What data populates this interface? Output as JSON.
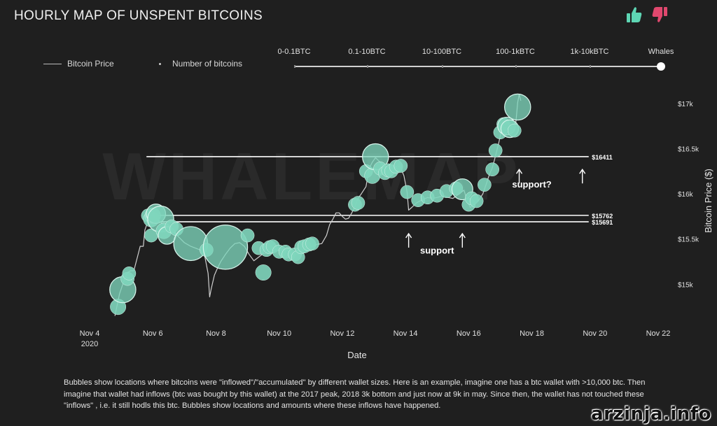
{
  "header": {
    "title": "HOURLY MAP OF UNSPENT BITCOINS",
    "like_icon": "thumbs-up-icon",
    "dislike_icon": "thumbs-down-icon",
    "like_color": "#5ed6b4",
    "dislike_color": "#e0486e"
  },
  "legend": {
    "price_label": "Bitcoin Price",
    "bubbles_label": "Number of bitcoins"
  },
  "wallet_filter": {
    "options": [
      "0-0.1BTC",
      "0.1-10BTC",
      "10-100BTC",
      "100-1kBTC",
      "1k-10kBTC",
      "Whales"
    ],
    "selected": "Whales"
  },
  "note": "Bubbles show locations where bitcoins were \"inflowed\"/\"accumulated\" by different wallet sizes. Here is an example, imagine one has a btc wallet with >10,000 btc. Then imagine that wallet had inflows (btc was bought by this wallet) at the 2017 peak, 2018 3k bottom and just now at 9k in may. Since then, the wallet has not touched these \"inflows\" , i.e. it still hodls this btc. Bubbles show locations and amounts where these inflows have happened.",
  "watermark": "arzinja.info",
  "chart_data": {
    "type": "line",
    "watermark": "WHALEMAP",
    "xlabel": "Date",
    "ylabel": "Bitcoin Price ($)",
    "x_ticks": [
      {
        "day": 4,
        "label": "Nov 4",
        "sub": "2020"
      },
      {
        "day": 6,
        "label": "Nov 6",
        "sub": ""
      },
      {
        "day": 8,
        "label": "Nov 8",
        "sub": ""
      },
      {
        "day": 10,
        "label": "Nov 10",
        "sub": ""
      },
      {
        "day": 12,
        "label": "Nov 12",
        "sub": ""
      },
      {
        "day": 14,
        "label": "Nov 14",
        "sub": ""
      },
      {
        "day": 16,
        "label": "Nov 16",
        "sub": ""
      },
      {
        "day": 18,
        "label": "Nov 18",
        "sub": ""
      },
      {
        "day": 20,
        "label": "Nov 20",
        "sub": ""
      },
      {
        "day": 22,
        "label": "Nov 22",
        "sub": ""
      }
    ],
    "y_ticks": [
      {
        "value": 15000,
        "label": "$15k"
      },
      {
        "value": 15500,
        "label": "$15.5k"
      },
      {
        "value": 16000,
        "label": "$16k"
      },
      {
        "value": 16500,
        "label": "$16.5k"
      },
      {
        "value": 17000,
        "label": "$17k"
      }
    ],
    "xlim": [
      4,
      22
    ],
    "ylim": [
      14500,
      17200
    ],
    "grid": false,
    "colors": {
      "price_line": "#cfcfcf",
      "bubble": "#7fd6bd",
      "level_line": "#ffffff"
    },
    "price_series": [
      [
        4.8,
        14650
      ],
      [
        4.95,
        14900
      ],
      [
        5.1,
        15050
      ],
      [
        5.2,
        15130
      ],
      [
        5.3,
        15150
      ],
      [
        5.4,
        15150
      ],
      [
        5.55,
        15350
      ],
      [
        5.6,
        15420
      ],
      [
        5.7,
        15420
      ],
      [
        5.75,
        15600
      ],
      [
        5.85,
        15700
      ],
      [
        5.9,
        15700
      ],
      [
        5.95,
        15820
      ],
      [
        6.0,
        15800
      ],
      [
        6.05,
        15740
      ],
      [
        6.15,
        15720
      ],
      [
        6.3,
        15670
      ],
      [
        6.45,
        15640
      ],
      [
        6.6,
        15590
      ],
      [
        6.8,
        15530
      ],
      [
        7.0,
        15460
      ],
      [
        7.2,
        15420
      ],
      [
        7.35,
        15400
      ],
      [
        7.5,
        15380
      ],
      [
        7.65,
        15300
      ],
      [
        7.75,
        15120
      ],
      [
        7.8,
        14860
      ],
      [
        7.85,
        14950
      ],
      [
        7.95,
        15100
      ],
      [
        8.05,
        15180
      ],
      [
        8.15,
        15250
      ],
      [
        8.3,
        15330
      ],
      [
        8.45,
        15400
      ],
      [
        8.6,
        15450
      ],
      [
        8.75,
        15460
      ],
      [
        8.9,
        15420
      ],
      [
        9.05,
        15330
      ],
      [
        9.2,
        15260
      ],
      [
        9.35,
        15300
      ],
      [
        9.5,
        15340
      ],
      [
        9.7,
        15350
      ],
      [
        9.85,
        15380
      ],
      [
        10.0,
        15370
      ],
      [
        10.2,
        15390
      ],
      [
        10.4,
        15330
      ],
      [
        10.6,
        15330
      ],
      [
        10.75,
        15380
      ],
      [
        10.9,
        15390
      ],
      [
        11.05,
        15420
      ],
      [
        11.2,
        15440
      ],
      [
        11.35,
        15450
      ],
      [
        11.5,
        15540
      ],
      [
        11.6,
        15660
      ],
      [
        11.7,
        15720
      ],
      [
        11.8,
        15790
      ],
      [
        11.9,
        15790
      ],
      [
        12.0,
        15750
      ],
      [
        12.1,
        15720
      ],
      [
        12.2,
        15730
      ],
      [
        12.3,
        15790
      ],
      [
        12.4,
        15860
      ],
      [
        12.5,
        15950
      ],
      [
        12.6,
        16000
      ],
      [
        12.75,
        16080
      ],
      [
        12.85,
        16280
      ],
      [
        12.95,
        16350
      ],
      [
        13.05,
        16400
      ],
      [
        13.2,
        16350
      ],
      [
        13.35,
        16290
      ],
      [
        13.55,
        16280
      ],
      [
        13.75,
        16310
      ],
      [
        13.85,
        16290
      ],
      [
        13.95,
        16200
      ],
      [
        14.05,
        16020
      ],
      [
        14.1,
        15820
      ],
      [
        14.2,
        15850
      ],
      [
        14.35,
        15900
      ],
      [
        14.5,
        15930
      ],
      [
        14.7,
        15960
      ],
      [
        14.85,
        15950
      ],
      [
        15.0,
        15960
      ],
      [
        15.2,
        15980
      ],
      [
        15.35,
        15960
      ],
      [
        15.5,
        15950
      ],
      [
        15.7,
        16000
      ],
      [
        15.85,
        16040
      ],
      [
        15.95,
        15930
      ],
      [
        16.05,
        15850
      ],
      [
        16.2,
        15890
      ],
      [
        16.3,
        15920
      ],
      [
        16.45,
        16000
      ],
      [
        16.55,
        16100
      ],
      [
        16.65,
        16210
      ],
      [
        16.75,
        16290
      ],
      [
        16.85,
        16420
      ],
      [
        16.95,
        16560
      ],
      [
        17.05,
        16720
      ],
      [
        17.15,
        16800
      ],
      [
        17.25,
        16780
      ],
      [
        17.35,
        16720
      ],
      [
        17.45,
        16700
      ],
      [
        17.5,
        16810
      ],
      [
        17.55,
        17010
      ],
      [
        17.6,
        17100
      ],
      [
        17.65,
        17030
      ]
    ],
    "bubbles": [
      {
        "day": 4.9,
        "price": 14750,
        "size": 3
      },
      {
        "day": 5.05,
        "price": 14940,
        "size": 10
      },
      {
        "day": 5.2,
        "price": 15060,
        "size": 2
      },
      {
        "day": 5.25,
        "price": 15120,
        "size": 2
      },
      {
        "day": 5.85,
        "price": 15760,
        "size": 2
      },
      {
        "day": 5.95,
        "price": 15540,
        "size": 2
      },
      {
        "day": 5.95,
        "price": 15720,
        "size": 3
      },
      {
        "day": 6.0,
        "price": 15760,
        "size": 3
      },
      {
        "day": 6.1,
        "price": 15780,
        "size": 5
      },
      {
        "day": 6.25,
        "price": 15720,
        "size": 10
      },
      {
        "day": 6.35,
        "price": 15590,
        "size": 3
      },
      {
        "day": 6.45,
        "price": 15540,
        "size": 4
      },
      {
        "day": 6.6,
        "price": 15640,
        "size": 2
      },
      {
        "day": 6.75,
        "price": 15610,
        "size": 2
      },
      {
        "day": 7.2,
        "price": 15450,
        "size": 18
      },
      {
        "day": 7.7,
        "price": 15380,
        "size": 2
      },
      {
        "day": 8.3,
        "price": 15410,
        "size": 32
      },
      {
        "day": 9.0,
        "price": 15540,
        "size": 2
      },
      {
        "day": 9.35,
        "price": 15400,
        "size": 2
      },
      {
        "day": 9.5,
        "price": 15130,
        "size": 3
      },
      {
        "day": 9.6,
        "price": 15380,
        "size": 2
      },
      {
        "day": 9.7,
        "price": 15410,
        "size": 2
      },
      {
        "day": 9.8,
        "price": 15420,
        "size": 2
      },
      {
        "day": 10.0,
        "price": 15360,
        "size": 2
      },
      {
        "day": 10.2,
        "price": 15360,
        "size": 2
      },
      {
        "day": 10.3,
        "price": 15330,
        "size": 2
      },
      {
        "day": 10.5,
        "price": 15330,
        "size": 2
      },
      {
        "day": 10.6,
        "price": 15300,
        "size": 2
      },
      {
        "day": 10.7,
        "price": 15410,
        "size": 2
      },
      {
        "day": 10.8,
        "price": 15420,
        "size": 2
      },
      {
        "day": 10.95,
        "price": 15440,
        "size": 2
      },
      {
        "day": 11.05,
        "price": 15450,
        "size": 2
      },
      {
        "day": 12.4,
        "price": 15880,
        "size": 2
      },
      {
        "day": 12.5,
        "price": 15900,
        "size": 2
      },
      {
        "day": 12.75,
        "price": 16250,
        "size": 2
      },
      {
        "day": 12.95,
        "price": 16200,
        "size": 3
      },
      {
        "day": 13.05,
        "price": 16410,
        "size": 10
      },
      {
        "day": 13.2,
        "price": 16280,
        "size": 2
      },
      {
        "day": 13.35,
        "price": 16230,
        "size": 2
      },
      {
        "day": 13.45,
        "price": 16260,
        "size": 2
      },
      {
        "day": 13.55,
        "price": 16250,
        "size": 2
      },
      {
        "day": 13.7,
        "price": 16300,
        "size": 2
      },
      {
        "day": 13.85,
        "price": 16310,
        "size": 2
      },
      {
        "day": 14.05,
        "price": 16020,
        "size": 2
      },
      {
        "day": 14.4,
        "price": 15930,
        "size": 2
      },
      {
        "day": 14.7,
        "price": 15960,
        "size": 2
      },
      {
        "day": 15.0,
        "price": 15980,
        "size": 2
      },
      {
        "day": 15.3,
        "price": 16030,
        "size": 2
      },
      {
        "day": 15.6,
        "price": 16060,
        "size": 2
      },
      {
        "day": 15.8,
        "price": 16050,
        "size": 6
      },
      {
        "day": 16.0,
        "price": 15880,
        "size": 2
      },
      {
        "day": 16.1,
        "price": 15950,
        "size": 2
      },
      {
        "day": 16.25,
        "price": 15920,
        "size": 2
      },
      {
        "day": 16.5,
        "price": 16100,
        "size": 2
      },
      {
        "day": 16.75,
        "price": 16270,
        "size": 2
      },
      {
        "day": 16.85,
        "price": 16480,
        "size": 2
      },
      {
        "day": 17.0,
        "price": 16680,
        "size": 2
      },
      {
        "day": 17.1,
        "price": 16770,
        "size": 2
      },
      {
        "day": 17.2,
        "price": 16750,
        "size": 4
      },
      {
        "day": 17.3,
        "price": 16720,
        "size": 4
      },
      {
        "day": 17.45,
        "price": 16700,
        "size": 2
      },
      {
        "day": 17.55,
        "price": 16960,
        "size": 10
      }
    ],
    "levels": [
      {
        "value": 16411,
        "label": "$16411"
      },
      {
        "value": 15762,
        "label": "$15762"
      },
      {
        "value": 15691,
        "label": "$15691"
      }
    ],
    "annotations": [
      {
        "text": "support",
        "day": 15.0,
        "price": 15340
      },
      {
        "text": "support?",
        "day": 18.0,
        "price": 16070
      }
    ],
    "arrows": [
      {
        "day": 14.1,
        "price": 15560
      },
      {
        "day": 15.8,
        "price": 15560
      },
      {
        "day": 17.6,
        "price": 16270
      },
      {
        "day": 19.6,
        "price": 16270
      }
    ]
  }
}
